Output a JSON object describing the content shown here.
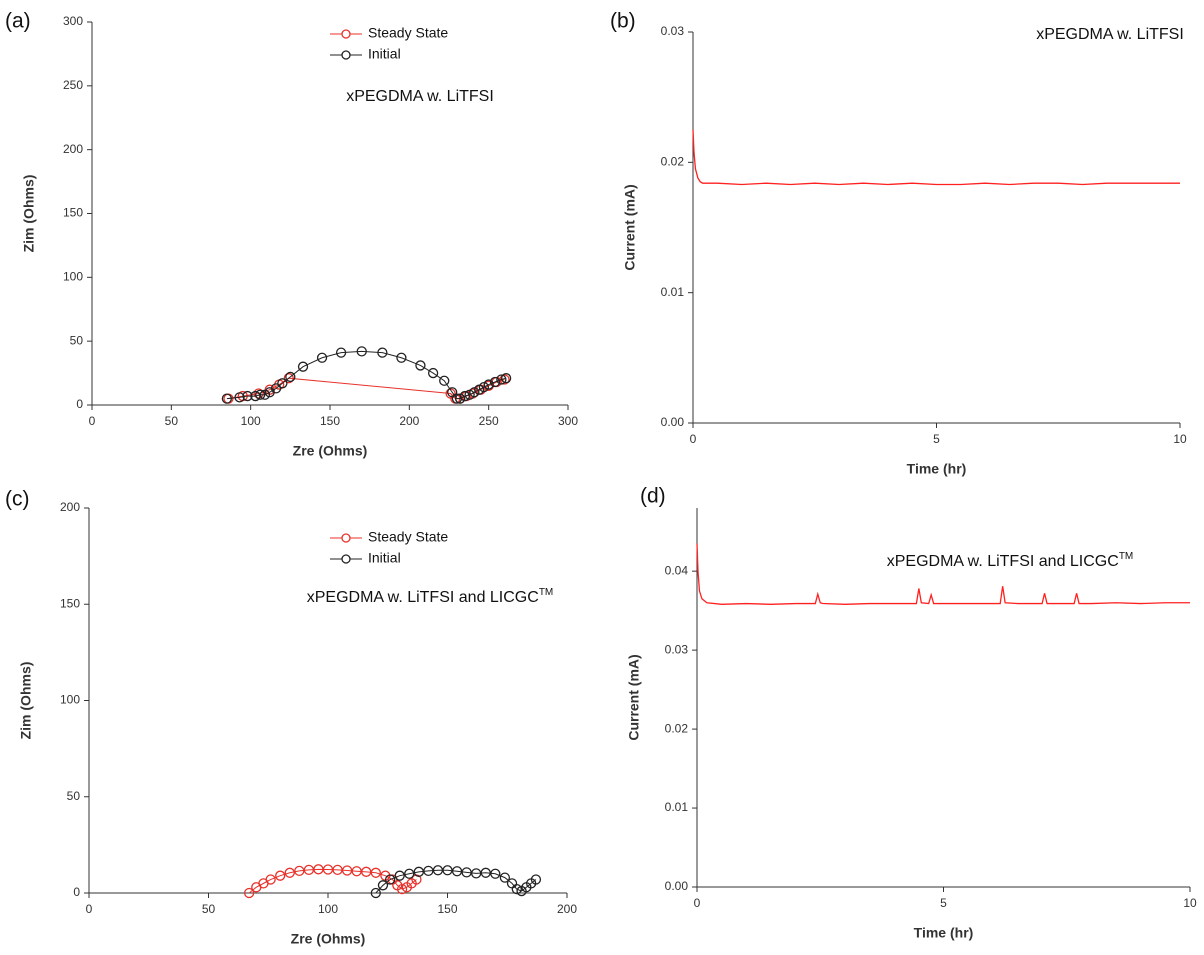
{
  "chart_data": [
    {
      "type": "scatter",
      "panel_label": "(a)",
      "annotation": {
        "text": "xPEGDMA w. LiTFSI"
      },
      "x_label": "Zre (Ohms)",
      "y_label": "Zim (Ohms)",
      "xlim": [
        0,
        300
      ],
      "ylim": [
        0,
        300
      ],
      "xticks": [
        0,
        50,
        100,
        150,
        200,
        250,
        300
      ],
      "yticks": [
        0,
        50,
        100,
        150,
        200,
        250,
        300
      ],
      "lines": true,
      "legend": "upper center",
      "series": [
        {
          "name": "Steady State",
          "color": "#e8312a",
          "x": [
            86,
            95,
            105,
            112,
            118,
            124,
            226,
            229,
            232,
            236,
            240,
            245,
            250,
            255,
            260
          ],
          "values": [
            5,
            7,
            9,
            12,
            16,
            21,
            9,
            5,
            5,
            7,
            9,
            12,
            15,
            18,
            20
          ]
        },
        {
          "name": "Initial",
          "color": "#222222",
          "x": [
            85,
            93,
            98,
            103,
            106,
            109,
            112,
            116,
            120,
            125,
            133,
            145,
            157,
            170,
            183,
            195,
            207,
            215,
            222,
            227,
            230,
            232,
            235,
            238,
            241,
            244,
            247,
            250,
            254,
            258,
            261
          ],
          "values": [
            5,
            6,
            7,
            7,
            8,
            8,
            10,
            13,
            17,
            22,
            30,
            37,
            41,
            42,
            41,
            37,
            31,
            25,
            19,
            10,
            5,
            5,
            7,
            8,
            10,
            12,
            14,
            16,
            18,
            20,
            21
          ]
        }
      ]
    },
    {
      "type": "line",
      "panel_label": "(b)",
      "annotation": {
        "text": "xPEGDMA w. LiTFSI"
      },
      "x_label": "Time (hr)",
      "y_label": "Current (mA)",
      "xlim": [
        0,
        10
      ],
      "ylim": [
        0,
        0.03
      ],
      "xticks": [
        0,
        5,
        10
      ],
      "yticks": [
        {
          "value": 0,
          "label": "0.00"
        },
        0.01,
        0.02,
        0.03
      ],
      "x": [
        0,
        0.02,
        0.05,
        0.1,
        0.15,
        0.2,
        0.5,
        1,
        1.5,
        2,
        2.5,
        3,
        3.5,
        4,
        4.5,
        5,
        5.5,
        6,
        6.5,
        7,
        7.5,
        8,
        8.5,
        9,
        9.5,
        10
      ],
      "series": [
        {
          "color": "#ff2020",
          "values": [
            0.0225,
            0.0208,
            0.0195,
            0.0188,
            0.0185,
            0.0184,
            0.0184,
            0.0183,
            0.0184,
            0.0183,
            0.0184,
            0.0183,
            0.0184,
            0.0183,
            0.0184,
            0.0183,
            0.0183,
            0.0184,
            0.0183,
            0.0184,
            0.0184,
            0.0183,
            0.0184,
            0.0184,
            0.0184,
            0.0184
          ]
        }
      ]
    },
    {
      "type": "scatter",
      "panel_label": "(c)",
      "annotation": {
        "text": "xPEGDMA w. LiTFSI and LICGC",
        "superscript": "TM"
      },
      "x_label": "Zre (Ohms)",
      "y_label": "Zim (Ohms)",
      "xlim": [
        0,
        200
      ],
      "ylim": [
        0,
        200
      ],
      "xticks": [
        0,
        50,
        100,
        150,
        200
      ],
      "yticks": [
        0,
        50,
        100,
        150,
        200
      ],
      "lines": true,
      "legend": "upper center",
      "series": [
        {
          "name": "Steady State",
          "color": "#e8312a",
          "x": [
            67,
            70,
            73,
            76,
            80,
            84,
            88,
            92,
            96,
            100,
            104,
            108,
            112,
            116,
            120,
            124,
            127,
            129,
            131,
            133,
            135,
            137
          ],
          "values": [
            0,
            3,
            5,
            7,
            9,
            10.5,
            11.5,
            12,
            12.3,
            12.2,
            12,
            11.7,
            11.3,
            11,
            10.5,
            9,
            7,
            4,
            2,
            3,
            5,
            7
          ]
        },
        {
          "name": "Initial",
          "color": "#222222",
          "x": [
            120,
            123,
            126,
            130,
            134,
            138,
            142,
            146,
            150,
            154,
            158,
            162,
            166,
            170,
            174,
            177,
            179,
            181,
            183,
            185,
            187
          ],
          "values": [
            0,
            4,
            7,
            9,
            10,
            11,
            11.5,
            11.8,
            11.8,
            11.3,
            10.7,
            10.2,
            10.5,
            10,
            8,
            5,
            2,
            1,
            3,
            5,
            7
          ]
        }
      ]
    },
    {
      "type": "line",
      "panel_label": "(d)",
      "annotation": {
        "text": "xPEGDMA w. LiTFSI and LICGC",
        "superscript": "TM"
      },
      "x_label": "Time (hr)",
      "y_label": "Current (mA)",
      "xlim": [
        0,
        10
      ],
      "ylim": [
        0,
        0.048
      ],
      "xticks": [
        0,
        5,
        10
      ],
      "yticks": [
        {
          "value": 0,
          "label": "0.00"
        },
        0.01,
        0.02,
        0.03,
        0.04
      ],
      "x": [
        0,
        0.02,
        0.05,
        0.1,
        0.2,
        0.5,
        1,
        1.5,
        2,
        2.4,
        2.45,
        2.5,
        2.55,
        3,
        3.5,
        4,
        4.45,
        4.5,
        4.55,
        4.7,
        4.75,
        4.8,
        5,
        5.5,
        6,
        6.15,
        6.2,
        6.25,
        6.5,
        7,
        7.05,
        7.1,
        7.6,
        7.65,
        7.7,
        7.75,
        8,
        8.5,
        9,
        9.5,
        10
      ],
      "series": [
        {
          "color": "#ff2020",
          "values": [
            0.0435,
            0.04,
            0.0375,
            0.0365,
            0.036,
            0.0358,
            0.0359,
            0.0358,
            0.0359,
            0.0359,
            0.0371,
            0.036,
            0.0359,
            0.0358,
            0.0359,
            0.0359,
            0.0359,
            0.0378,
            0.036,
            0.0359,
            0.037,
            0.0359,
            0.0359,
            0.0359,
            0.0359,
            0.0359,
            0.0381,
            0.036,
            0.0359,
            0.0359,
            0.0372,
            0.0359,
            0.0359,
            0.0359,
            0.0372,
            0.0359,
            0.0359,
            0.036,
            0.0359,
            0.036,
            0.036
          ]
        }
      ]
    }
  ]
}
